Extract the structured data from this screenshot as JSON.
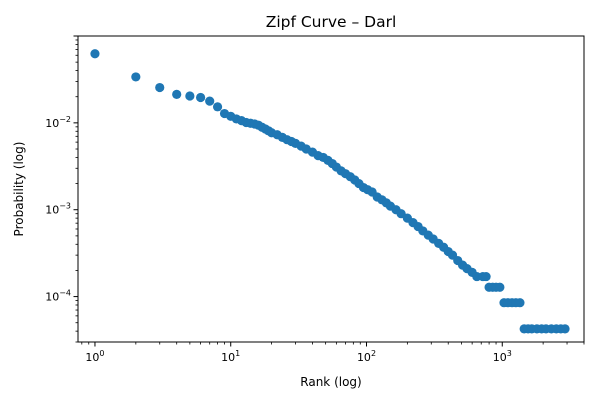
{
  "chart_data": {
    "type": "scatter",
    "title": "Zipf Curve – Darl",
    "xlabel": "Rank (log)",
    "ylabel": "Probability (log)",
    "xscale": "log",
    "yscale": "log",
    "xlim": [
      0.75,
      4000
    ],
    "ylim": [
      3e-05,
      0.1
    ],
    "grid": false,
    "color": "#1f77b4",
    "x_ticks": [
      {
        "base": "10",
        "exp": "0",
        "value": 1
      },
      {
        "base": "10",
        "exp": "1",
        "value": 10
      },
      {
        "base": "10",
        "exp": "2",
        "value": 100
      },
      {
        "base": "10",
        "exp": "3",
        "value": 1000
      }
    ],
    "y_ticks": [
      {
        "base": "10",
        "exp": "−4",
        "value": 0.0001
      },
      {
        "base": "10",
        "exp": "−3",
        "value": 0.001
      },
      {
        "base": "10",
        "exp": "−2",
        "value": 0.01
      }
    ],
    "points": [
      [
        1,
        0.0625
      ],
      [
        2,
        0.0338
      ],
      [
        3,
        0.0255
      ],
      [
        4,
        0.0213
      ],
      [
        5,
        0.0204
      ],
      [
        6,
        0.0196
      ],
      [
        7,
        0.0178
      ],
      [
        8,
        0.0153
      ],
      [
        9,
        0.0128
      ],
      [
        10,
        0.0119
      ],
      [
        11,
        0.0111
      ],
      [
        12,
        0.0106
      ],
      [
        13,
        0.0101
      ],
      [
        14,
        0.0099
      ],
      [
        15,
        0.0097
      ],
      [
        16,
        0.0094
      ],
      [
        17,
        0.0089
      ],
      [
        18,
        0.0085
      ],
      [
        19,
        0.0081
      ],
      [
        20,
        0.0077
      ],
      [
        22,
        0.0073
      ],
      [
        24,
        0.0068
      ],
      [
        26,
        0.0064
      ],
      [
        28,
        0.0061
      ],
      [
        30,
        0.0058
      ],
      [
        33,
        0.0054
      ],
      [
        36,
        0.005
      ],
      [
        40,
        0.0046
      ],
      [
        44,
        0.0042
      ],
      [
        48,
        0.004
      ],
      [
        52,
        0.0037
      ],
      [
        56,
        0.0034
      ],
      [
        60,
        0.0031
      ],
      [
        65,
        0.0028
      ],
      [
        70,
        0.0026
      ],
      [
        76,
        0.0024
      ],
      [
        82,
        0.0022
      ],
      [
        88,
        0.002
      ],
      [
        95,
        0.0018
      ],
      [
        102,
        0.0017
      ],
      [
        110,
        0.0016
      ],
      [
        120,
        0.0014
      ],
      [
        130,
        0.0013
      ],
      [
        140,
        0.0012
      ],
      [
        150,
        0.0011
      ],
      [
        165,
        0.001
      ],
      [
        180,
        0.0009
      ],
      [
        200,
        0.0008
      ],
      [
        220,
        0.00071
      ],
      [
        240,
        0.00064
      ],
      [
        260,
        0.00057
      ],
      [
        285,
        0.00051
      ],
      [
        310,
        0.00046
      ],
      [
        340,
        0.00041
      ],
      [
        370,
        0.00037
      ],
      [
        400,
        0.00033
      ],
      [
        430,
        0.0003
      ],
      [
        470,
        0.00026
      ],
      [
        510,
        0.00023
      ],
      [
        550,
        0.00021
      ],
      [
        600,
        0.00019
      ],
      [
        650,
        0.00017
      ],
      [
        720,
        0.00017
      ],
      [
        760,
        0.00017
      ],
      [
        800,
        0.000128
      ],
      [
        850,
        0.000128
      ],
      [
        900,
        0.000128
      ],
      [
        960,
        0.000128
      ],
      [
        1030,
        8.5e-05
      ],
      [
        1100,
        8.5e-05
      ],
      [
        1180,
        8.5e-05
      ],
      [
        1260,
        8.5e-05
      ],
      [
        1350,
        8.5e-05
      ],
      [
        1450,
        4.25e-05
      ],
      [
        1550,
        4.25e-05
      ],
      [
        1650,
        4.25e-05
      ],
      [
        1800,
        4.25e-05
      ],
      [
        1950,
        4.25e-05
      ],
      [
        2100,
        4.25e-05
      ],
      [
        2300,
        4.25e-05
      ],
      [
        2500,
        4.25e-05
      ],
      [
        2700,
        4.25e-05
      ],
      [
        2900,
        4.25e-05
      ]
    ]
  }
}
